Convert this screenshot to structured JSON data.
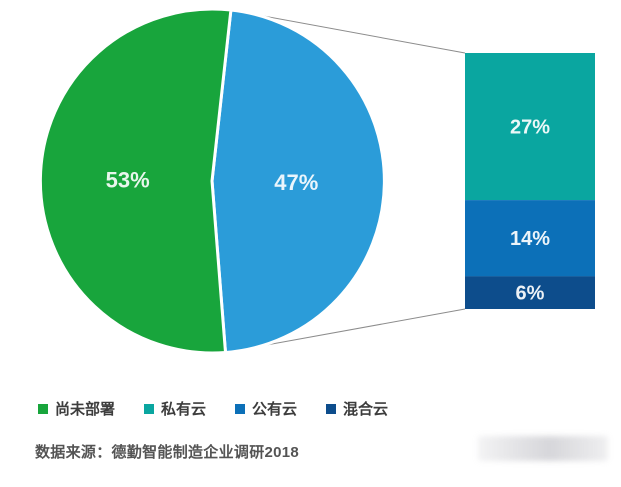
{
  "chart_data": {
    "type": "pie",
    "subtype": "pie-with-breakout-stacked-bar",
    "title": "",
    "pie_slices": [
      {
        "legend_label": "尚未部署",
        "value": 53,
        "display": "53%",
        "color": "#18a53c"
      },
      {
        "legend_label": "",
        "value": 47,
        "display": "47%",
        "color": "#2b9cd9"
      }
    ],
    "breakout_segments": [
      {
        "legend_label": "私有云",
        "value": 27,
        "display": "27%",
        "color": "#0aa6a0"
      },
      {
        "legend_label": "公有云",
        "value": 14,
        "display": "14%",
        "color": "#0c70b8"
      },
      {
        "legend_label": "混合云",
        "value": 6,
        "display": "6%",
        "color": "#0d4d8c"
      }
    ],
    "legend": [
      {
        "label": "尚未部署",
        "color": "#18a53c"
      },
      {
        "label": "私有云",
        "color": "#0aa6a0"
      },
      {
        "label": "公有云",
        "color": "#0c70b8"
      },
      {
        "label": "混合云",
        "color": "#0d4d8c"
      }
    ],
    "legend_position": "bottom-left",
    "grid": false,
    "source": "数据来源：德勤智能制造企业调研2018",
    "colors": {
      "callout_line": "#8c8c8c",
      "slice_separator": "#ffffff",
      "value_label_text": "#ffffff",
      "legend_text": "#3d3d3d",
      "source_text": "#545454"
    }
  }
}
